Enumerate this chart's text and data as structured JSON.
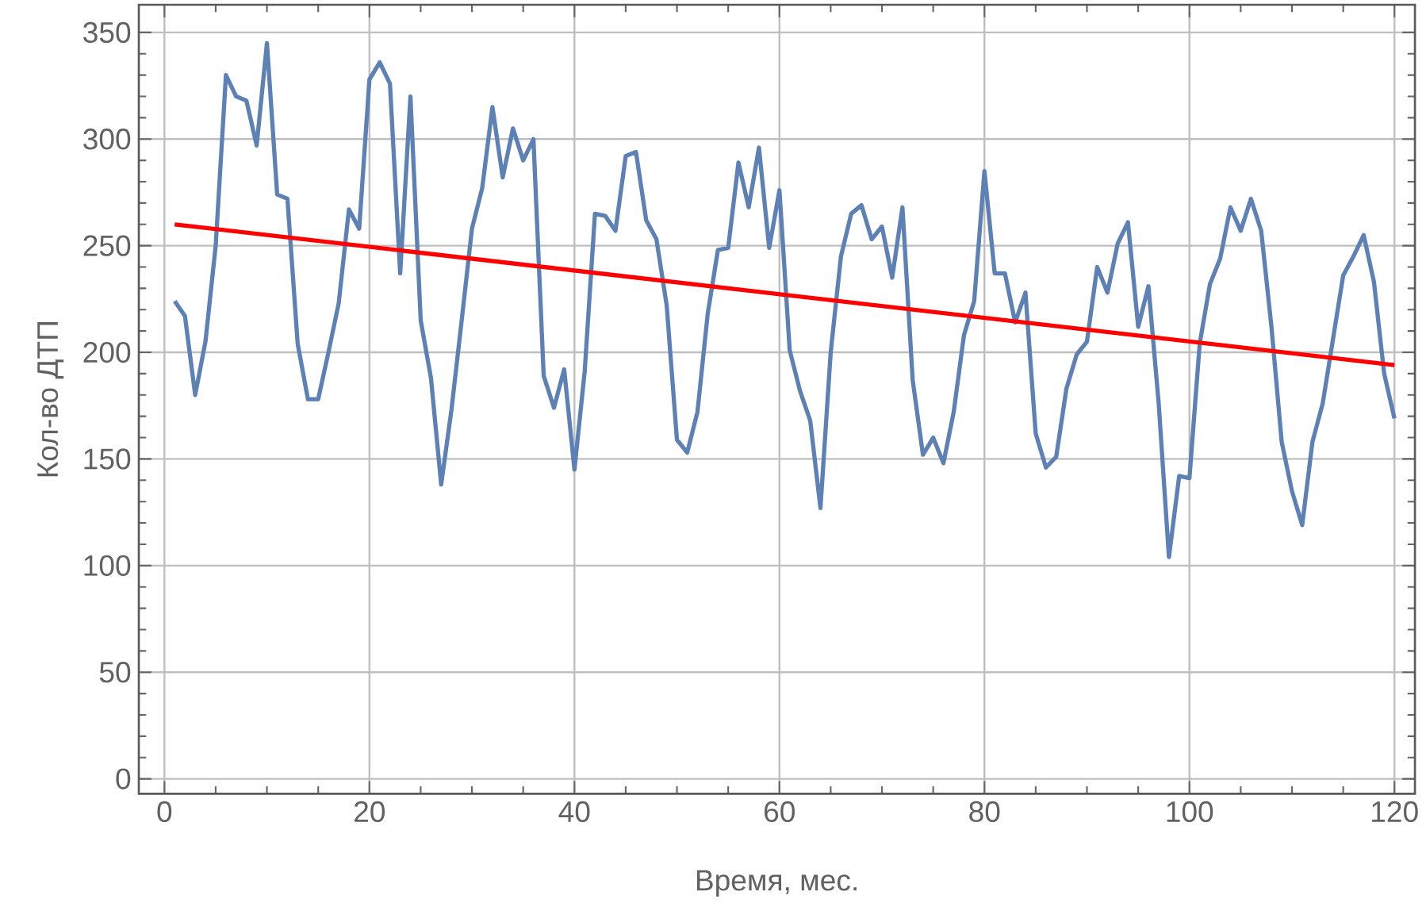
{
  "chart_data": {
    "type": "line",
    "xlabel": "Время, мес.",
    "ylabel": "Кол-во ДТП",
    "x": [
      1,
      2,
      3,
      4,
      5,
      6,
      7,
      8,
      9,
      10,
      11,
      12,
      13,
      14,
      15,
      16,
      17,
      18,
      19,
      20,
      21,
      22,
      23,
      24,
      25,
      26,
      27,
      28,
      29,
      30,
      31,
      32,
      33,
      34,
      35,
      36,
      37,
      38,
      39,
      40,
      41,
      42,
      43,
      44,
      45,
      46,
      47,
      48,
      49,
      50,
      51,
      52,
      53,
      54,
      55,
      56,
      57,
      58,
      59,
      60,
      61,
      62,
      63,
      64,
      65,
      66,
      67,
      68,
      69,
      70,
      71,
      72,
      73,
      74,
      75,
      76,
      77,
      78,
      79,
      80,
      81,
      82,
      83,
      84,
      85,
      86,
      87,
      88,
      89,
      90,
      91,
      92,
      93,
      94,
      95,
      96,
      97,
      98,
      99,
      100,
      101,
      102,
      103,
      104,
      105,
      106,
      107,
      108,
      109,
      110,
      111,
      112,
      113,
      114,
      115,
      116,
      117,
      118,
      119,
      120
    ],
    "series": [
      {
        "color": "#5e81b5",
        "values": [
          224,
          217,
          180,
          205,
          250,
          330,
          320,
          318,
          297,
          345,
          274,
          272,
          204,
          178,
          178,
          200,
          223,
          267,
          258,
          328,
          336,
          326,
          237,
          320,
          215,
          188,
          138,
          173,
          215,
          258,
          277,
          315,
          282,
          305,
          290,
          300,
          189,
          174,
          192,
          145,
          191,
          265,
          264,
          257,
          292,
          294,
          262,
          253,
          222,
          159,
          153,
          172,
          218,
          248,
          249,
          289,
          268,
          296,
          249,
          276,
          201,
          182,
          168,
          127,
          200,
          245,
          265,
          269,
          253,
          259,
          235,
          268,
          187,
          152,
          160,
          148,
          172,
          208,
          224,
          285,
          237,
          237,
          214,
          228,
          162,
          146,
          151,
          183,
          199,
          205,
          240,
          228,
          251,
          261,
          212,
          231,
          176,
          104,
          142,
          141,
          204,
          232,
          244,
          268,
          257,
          272,
          257,
          212,
          158,
          135,
          119,
          158,
          176,
          206,
          236,
          245,
          255,
          233,
          190,
          169
        ]
      },
      {
        "type": "line",
        "color": "#ff0000",
        "x": [
          1,
          120
        ],
        "values": [
          260,
          194
        ]
      }
    ],
    "xlim": [
      -2.5,
      122
    ],
    "ylim": [
      -7,
      363
    ],
    "xticks": [
      0,
      20,
      40,
      60,
      80,
      100,
      120
    ],
    "yticks": [
      0,
      50,
      100,
      150,
      200,
      250,
      300,
      350
    ],
    "grid": true
  }
}
